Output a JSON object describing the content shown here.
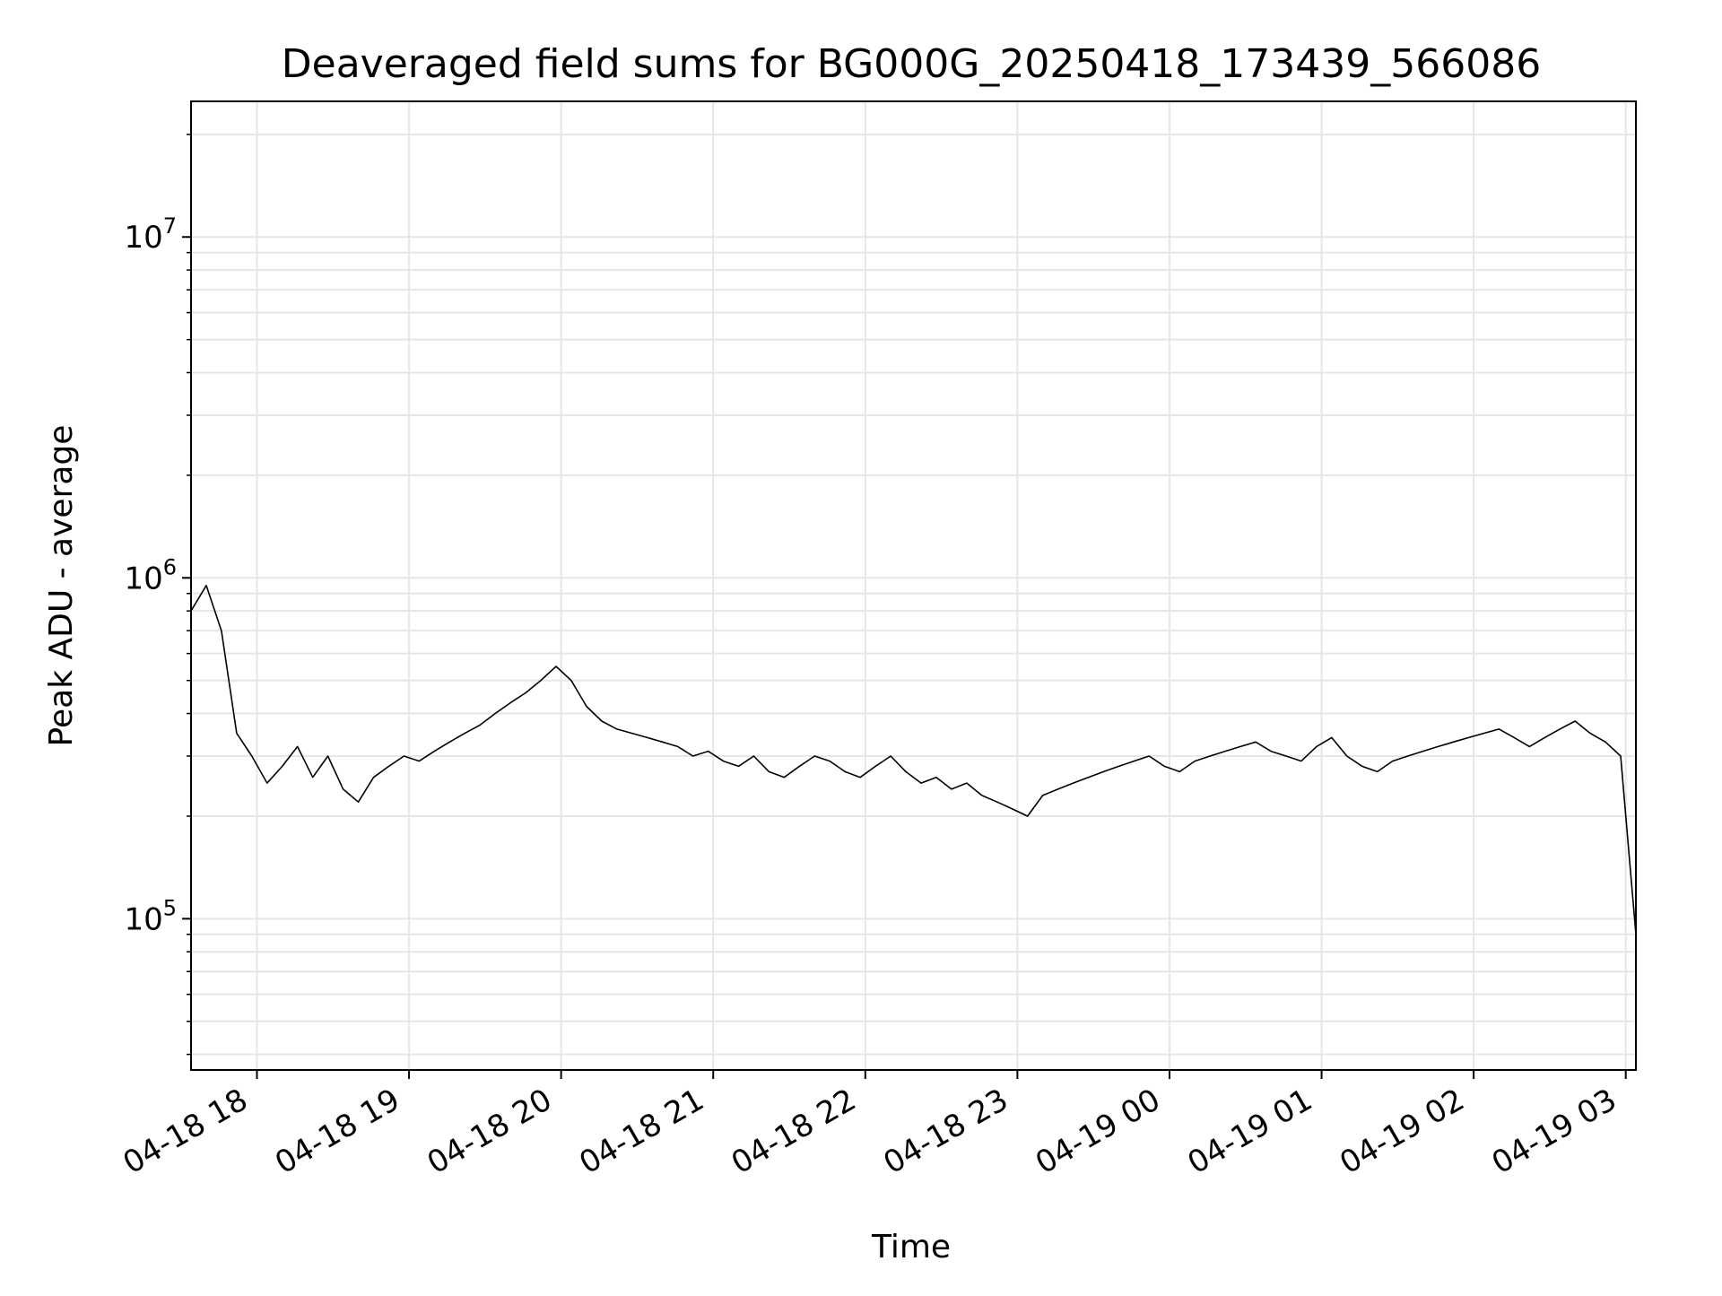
{
  "chart_data": {
    "type": "line",
    "title": "Deaveraged field sums for BG000G_20250418_173439_566086",
    "xlabel": "Time",
    "ylabel": "Peak ADU - average",
    "yscale": "log",
    "ylim": [
      36000,
      25000000
    ],
    "xlim": [
      "2025-04-18 17:34",
      "2025-04-19 03:04"
    ],
    "grid": true,
    "color": "#000000",
    "x_ticks": [
      {
        "label": "04-18 18",
        "t": "2025-04-18 18:00"
      },
      {
        "label": "04-18 19",
        "t": "2025-04-18 19:00"
      },
      {
        "label": "04-18 20",
        "t": "2025-04-18 20:00"
      },
      {
        "label": "04-18 21",
        "t": "2025-04-18 21:00"
      },
      {
        "label": "04-18 22",
        "t": "2025-04-18 22:00"
      },
      {
        "label": "04-18 23",
        "t": "2025-04-18 23:00"
      },
      {
        "label": "04-19 00",
        "t": "2025-04-19 00:00"
      },
      {
        "label": "04-19 01",
        "t": "2025-04-19 01:00"
      },
      {
        "label": "04-19 02",
        "t": "2025-04-19 02:00"
      },
      {
        "label": "04-19 03",
        "t": "2025-04-19 03:00"
      }
    ],
    "y_ticks": [
      {
        "value": 100000,
        "base": "10",
        "exp": "5"
      },
      {
        "value": 1000000,
        "base": "10",
        "exp": "6"
      },
      {
        "value": 10000000,
        "base": "10",
        "exp": "7"
      }
    ],
    "series": [
      {
        "x": [
          "2025-04-18 17:34",
          "2025-04-18 17:40",
          "2025-04-18 17:46",
          "2025-04-18 17:52",
          "2025-04-18 17:58",
          "2025-04-18 18:04",
          "2025-04-18 18:10",
          "2025-04-18 18:16",
          "2025-04-18 18:22",
          "2025-04-18 18:28",
          "2025-04-18 18:34",
          "2025-04-18 18:40",
          "2025-04-18 18:46",
          "2025-04-18 18:52",
          "2025-04-18 18:58",
          "2025-04-18 19:04",
          "2025-04-18 19:10",
          "2025-04-18 19:16",
          "2025-04-18 19:22",
          "2025-04-18 19:28",
          "2025-04-18 19:34",
          "2025-04-18 19:40",
          "2025-04-18 19:46",
          "2025-04-18 19:52",
          "2025-04-18 19:58",
          "2025-04-18 20:04",
          "2025-04-18 20:10",
          "2025-04-18 20:16",
          "2025-04-18 20:22",
          "2025-04-18 20:28",
          "2025-04-18 20:34",
          "2025-04-18 20:40",
          "2025-04-18 20:46",
          "2025-04-18 20:52",
          "2025-04-18 20:58",
          "2025-04-18 21:04",
          "2025-04-18 21:10",
          "2025-04-18 21:16",
          "2025-04-18 21:22",
          "2025-04-18 21:28",
          "2025-04-18 21:34",
          "2025-04-18 21:40",
          "2025-04-18 21:46",
          "2025-04-18 21:52",
          "2025-04-18 21:58",
          "2025-04-18 22:04",
          "2025-04-18 22:10",
          "2025-04-18 22:16",
          "2025-04-18 22:22",
          "2025-04-18 22:28",
          "2025-04-18 22:34",
          "2025-04-18 22:40",
          "2025-04-18 22:46",
          "2025-04-18 22:52",
          "2025-04-18 22:58",
          "2025-04-18 23:04",
          "2025-04-18 23:10",
          "2025-04-18 23:16",
          "2025-04-18 23:22",
          "2025-04-18 23:28",
          "2025-04-18 23:34",
          "2025-04-18 23:40",
          "2025-04-18 23:46",
          "2025-04-18 23:52",
          "2025-04-18 23:58",
          "2025-04-19 00:04",
          "2025-04-19 00:10",
          "2025-04-19 00:16",
          "2025-04-19 00:22",
          "2025-04-19 00:28",
          "2025-04-19 00:34",
          "2025-04-19 00:40",
          "2025-04-19 00:46",
          "2025-04-19 00:52",
          "2025-04-19 00:58",
          "2025-04-19 01:04",
          "2025-04-19 01:10",
          "2025-04-19 01:16",
          "2025-04-19 01:22",
          "2025-04-19 01:28",
          "2025-04-19 01:34",
          "2025-04-19 01:40",
          "2025-04-19 01:46",
          "2025-04-19 01:52",
          "2025-04-19 01:58",
          "2025-04-19 02:04",
          "2025-04-19 02:10",
          "2025-04-19 02:16",
          "2025-04-19 02:22",
          "2025-04-19 02:28",
          "2025-04-19 02:34",
          "2025-04-19 02:40",
          "2025-04-19 02:46",
          "2025-04-19 02:52",
          "2025-04-19 02:58",
          "2025-04-19 03:04"
        ],
        "y": [
          800000,
          950000,
          700000,
          350000,
          300000,
          250000,
          280000,
          320000,
          260000,
          300000,
          240000,
          220000,
          260000,
          280000,
          300000,
          290000,
          310000,
          330000,
          350000,
          370000,
          400000,
          430000,
          460000,
          500000,
          550000,
          500000,
          420000,
          380000,
          360000,
          350000,
          340000,
          330000,
          320000,
          300000,
          310000,
          290000,
          280000,
          300000,
          270000,
          260000,
          280000,
          300000,
          290000,
          270000,
          260000,
          280000,
          300000,
          270000,
          250000,
          260000,
          240000,
          250000,
          230000,
          220000,
          210000,
          200000,
          230000,
          240000,
          250000,
          260000,
          270000,
          280000,
          290000,
          300000,
          280000,
          270000,
          290000,
          300000,
          310000,
          320000,
          330000,
          310000,
          300000,
          290000,
          320000,
          340000,
          300000,
          280000,
          270000,
          290000,
          300000,
          310000,
          320000,
          330000,
          340000,
          350000,
          360000,
          340000,
          320000,
          340000,
          360000,
          380000,
          350000,
          330000,
          300000,
          90000
        ]
      }
    ]
  }
}
